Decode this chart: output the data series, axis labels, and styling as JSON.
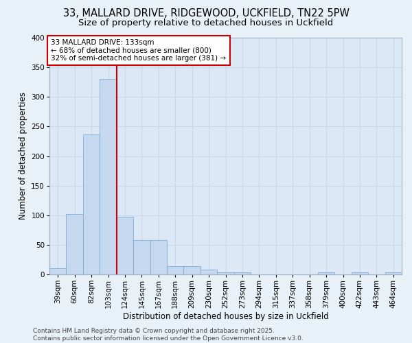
{
  "title_line1": "33, MALLARD DRIVE, RIDGEWOOD, UCKFIELD, TN22 5PW",
  "title_line2": "Size of property relative to detached houses in Uckfield",
  "xlabel": "Distribution of detached houses by size in Uckfield",
  "ylabel": "Number of detached properties",
  "categories": [
    "39sqm",
    "60sqm",
    "82sqm",
    "103sqm",
    "124sqm",
    "145sqm",
    "167sqm",
    "188sqm",
    "209sqm",
    "230sqm",
    "252sqm",
    "273sqm",
    "294sqm",
    "315sqm",
    "337sqm",
    "358sqm",
    "379sqm",
    "400sqm",
    "422sqm",
    "443sqm",
    "464sqm"
  ],
  "values": [
    10,
    102,
    237,
    330,
    97,
    58,
    58,
    14,
    14,
    8,
    3,
    3,
    0,
    0,
    0,
    0,
    3,
    0,
    3,
    0,
    3
  ],
  "bar_color": "#c5d8f0",
  "bar_edge_color": "#7aadd4",
  "grid_color": "#c8d8e8",
  "background_color": "#dce8f5",
  "fig_background_color": "#e8f0f8",
  "vline_x": 3.5,
  "vline_color": "#cc0000",
  "annotation_text": "33 MALLARD DRIVE: 133sqm\n← 68% of detached houses are smaller (800)\n32% of semi-detached houses are larger (381) →",
  "annotation_box_color": "#ffffff",
  "annotation_box_edge": "#cc0000",
  "ylim": [
    0,
    400
  ],
  "yticks": [
    0,
    50,
    100,
    150,
    200,
    250,
    300,
    350,
    400
  ],
  "footer_text": "Contains HM Land Registry data © Crown copyright and database right 2025.\nContains public sector information licensed under the Open Government Licence v3.0.",
  "title_fontsize": 10.5,
  "subtitle_fontsize": 9.5,
  "axis_label_fontsize": 8.5,
  "tick_fontsize": 7.5,
  "annotation_fontsize": 7.5,
  "footer_fontsize": 6.5
}
